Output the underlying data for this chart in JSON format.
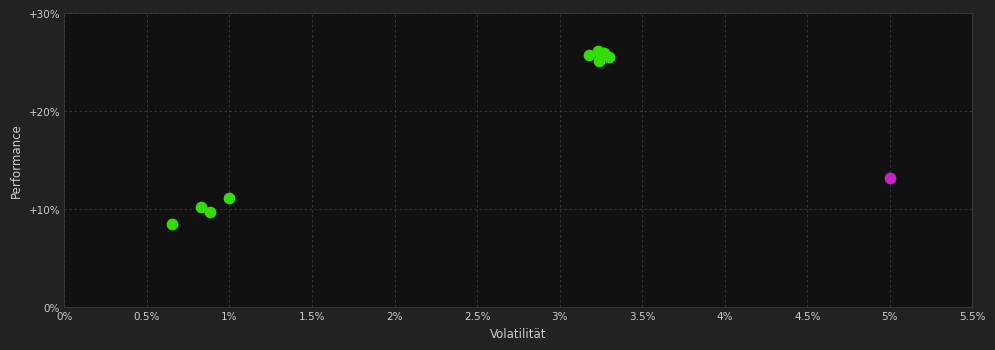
{
  "background_color": "#222222",
  "plot_bg_color": "#111111",
  "grid_color": "#404040",
  "text_color": "#cccccc",
  "xlabel": "Volatilität",
  "ylabel": "Performance",
  "xlim": [
    0.0,
    0.055
  ],
  "ylim": [
    0.0,
    0.3
  ],
  "xticks": [
    0.0,
    0.005,
    0.01,
    0.015,
    0.02,
    0.025,
    0.03,
    0.035,
    0.04,
    0.045,
    0.05,
    0.055
  ],
  "yticks": [
    0.0,
    0.1,
    0.2,
    0.3
  ],
  "xtick_labels": [
    "0%",
    "0.5%",
    "1%",
    "1.5%",
    "2%",
    "2.5%",
    "3%",
    "3.5%",
    "4%",
    "4.5%",
    "5%",
    "5.5%"
  ],
  "ytick_labels": [
    "0%",
    "+10%",
    "+20%",
    "+30%"
  ],
  "green_points": [
    [
      0.0065,
      0.085
    ],
    [
      0.0083,
      0.102
    ],
    [
      0.0088,
      0.097
    ],
    [
      0.01,
      0.111
    ],
    [
      0.0318,
      0.257
    ],
    [
      0.0323,
      0.262
    ],
    [
      0.0327,
      0.259
    ],
    [
      0.033,
      0.255
    ],
    [
      0.0324,
      0.251
    ]
  ],
  "magenta_points": [
    [
      0.05,
      0.132
    ]
  ],
  "green_color": "#33dd00",
  "magenta_color": "#cc22cc",
  "marker_size": 55
}
